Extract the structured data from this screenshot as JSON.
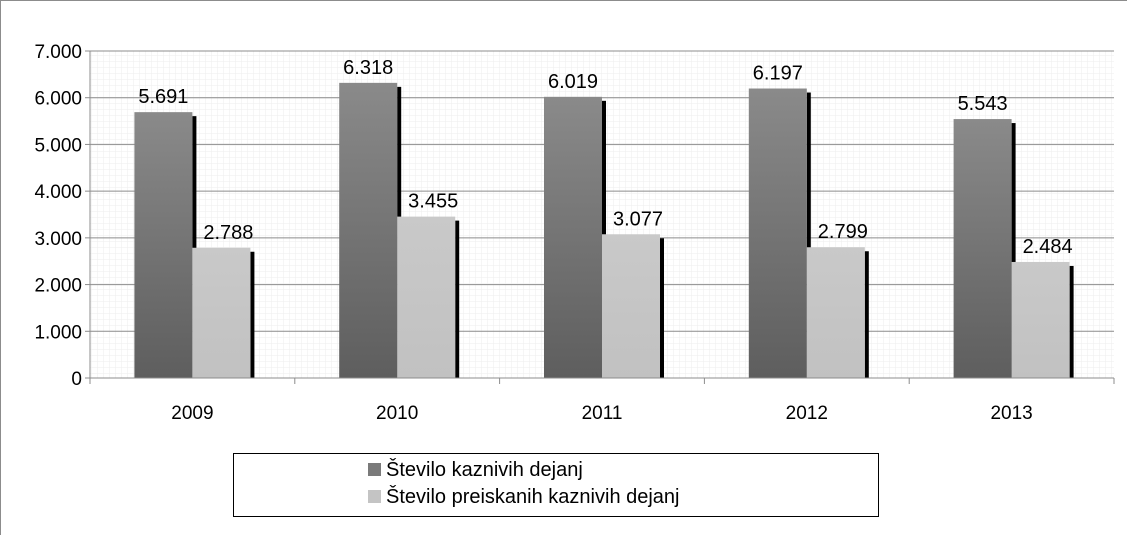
{
  "chart_data": {
    "type": "bar",
    "categories": [
      "2009",
      "2010",
      "2011",
      "2012",
      "2013"
    ],
    "series": [
      {
        "name": "Število kaznivih dejanj",
        "values": [
          5691,
          6318,
          6019,
          6197,
          5543
        ],
        "labels": [
          "5.691",
          "6.318",
          "6.019",
          "6.197",
          "5.543"
        ],
        "color": "#7a7a7a"
      },
      {
        "name": "Število preiskanih kaznivih dejanj",
        "values": [
          2788,
          3455,
          3077,
          2799,
          2484
        ],
        "labels": [
          "2.788",
          "3.455",
          "3.077",
          "2.799",
          "2.484"
        ],
        "color": "#c4c4c4"
      }
    ],
    "y_ticks": [
      0,
      1000,
      2000,
      3000,
      4000,
      5000,
      6000,
      7000
    ],
    "y_tick_labels": [
      "0",
      "1.000",
      "2.000",
      "3.000",
      "4.000",
      "5.000",
      "6.000",
      "7.000"
    ],
    "ylim": [
      0,
      7000
    ],
    "grid": true,
    "legend_position": "bottom"
  }
}
